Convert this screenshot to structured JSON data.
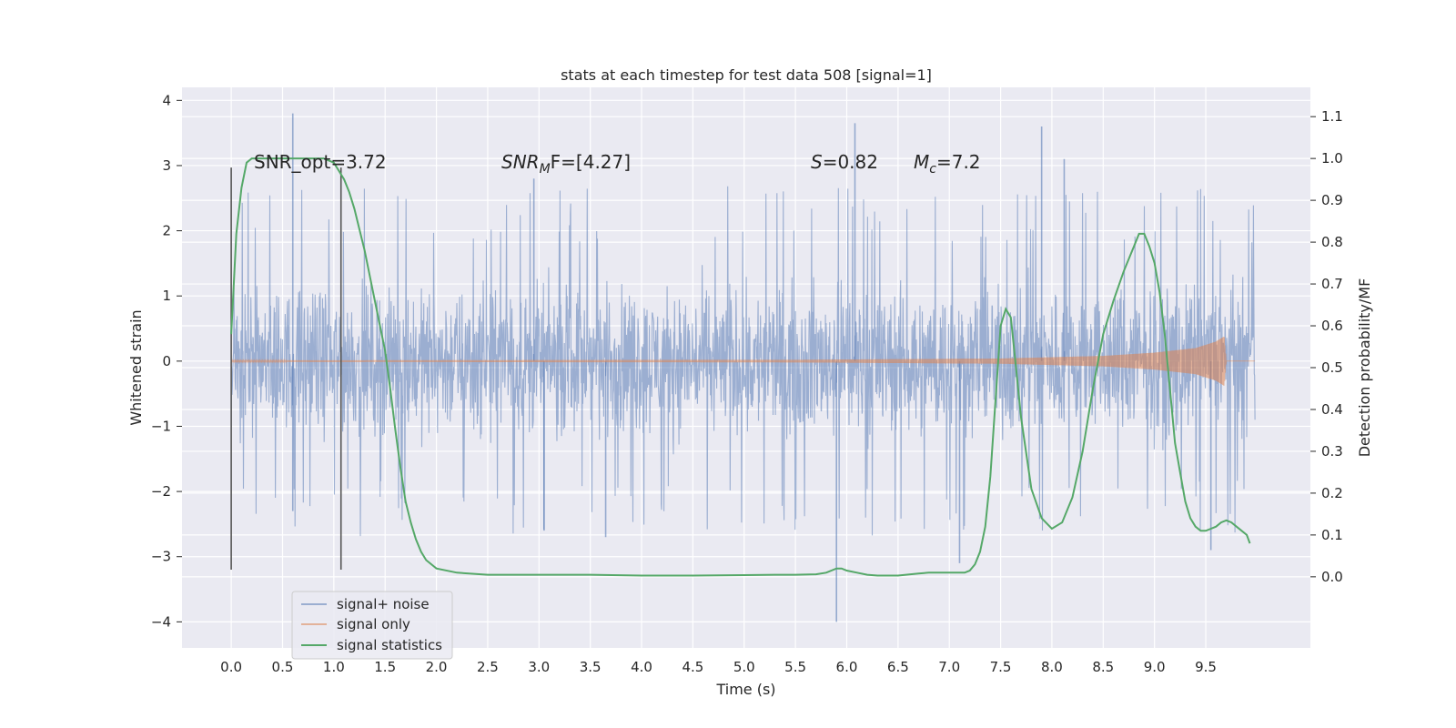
{
  "chart_data": {
    "type": "line",
    "title": "stats at each timestep for test data 508 [signal=1]",
    "xlabel": "Time (s)",
    "ylabel": "Whitened strain",
    "y2label": "Detection probability/MF",
    "xlim": [
      -0.48,
      10.52
    ],
    "ylim": [
      -4.4,
      4.2
    ],
    "y2lim": [
      -0.17,
      1.17
    ],
    "xticks": [
      "0.0",
      "0.5",
      "1.0",
      "1.5",
      "2.0",
      "2.5",
      "3.0",
      "3.5",
      "4.0",
      "4.5",
      "5.0",
      "5.5",
      "6.0",
      "6.5",
      "7.0",
      "7.5",
      "8.0",
      "8.5",
      "9.0",
      "9.5"
    ],
    "yticks": [
      "−4",
      "−3",
      "−2",
      "−1",
      "0",
      "1",
      "2",
      "3",
      "4"
    ],
    "y2ticks": [
      "0.0",
      "0.1",
      "0.2",
      "0.3",
      "0.4",
      "0.5",
      "0.6",
      "0.7",
      "0.8",
      "0.9",
      "1.0",
      "1.1"
    ],
    "grid": true,
    "legend_position": "lower-left",
    "annotations": [
      {
        "text": "SNR_opt=3.72"
      },
      {
        "main": "SNR",
        "sub": "M",
        "rest": "F=[4.27]"
      },
      {
        "main": "S",
        "rest": "=0.82"
      },
      {
        "main": "M",
        "sub": "c",
        "rest": "=7.2"
      }
    ],
    "vlines_x": [
      0.0,
      1.07
    ],
    "series": [
      {
        "name": "signal+ noise",
        "color": "#4c72b0",
        "axis": "left",
        "x_range": [
          0.0,
          9.98
        ],
        "typical_amplitude": 1.25,
        "spikes": [
          {
            "x": 0.6,
            "y": 3.8
          },
          {
            "x": 0.6,
            "y": -2.3
          },
          {
            "x": 2.95,
            "y": 2.8
          },
          {
            "x": 3.05,
            "y": -2.6
          },
          {
            "x": 3.65,
            "y": -2.7
          },
          {
            "x": 5.9,
            "y": -4.0
          },
          {
            "x": 6.08,
            "y": 3.65
          },
          {
            "x": 7.1,
            "y": -3.1
          },
          {
            "x": 7.9,
            "y": 3.6
          },
          {
            "x": 8.12,
            "y": 3.1
          },
          {
            "x": 9.55,
            "y": -2.9
          }
        ]
      },
      {
        "name": "signal only",
        "color": "#dd8452",
        "axis": "left",
        "envelope_x": [
          0.0,
          5.5,
          7.5,
          8.5,
          9.0,
          9.4,
          9.6,
          9.68,
          9.7,
          9.98
        ],
        "envelope_y": [
          0.01,
          0.02,
          0.04,
          0.08,
          0.13,
          0.2,
          0.3,
          0.38,
          0.0,
          0.0
        ]
      },
      {
        "name": "signal statistics",
        "color": "#55a868",
        "axis": "right",
        "x": [
          0.0,
          0.05,
          0.1,
          0.15,
          0.2,
          0.3,
          0.4,
          0.5,
          0.6,
          0.7,
          0.8,
          0.9,
          1.0,
          1.05,
          1.1,
          1.15,
          1.2,
          1.3,
          1.4,
          1.5,
          1.55,
          1.6,
          1.65,
          1.7,
          1.75,
          1.8,
          1.85,
          1.9,
          2.0,
          2.2,
          2.5,
          3.0,
          3.5,
          4.0,
          4.5,
          5.0,
          5.3,
          5.5,
          5.7,
          5.8,
          5.9,
          5.95,
          6.0,
          6.1,
          6.2,
          6.3,
          6.5,
          6.7,
          6.8,
          7.0,
          7.1,
          7.15,
          7.2,
          7.25,
          7.3,
          7.35,
          7.4,
          7.45,
          7.5,
          7.55,
          7.6,
          7.65,
          7.7,
          7.8,
          7.9,
          8.0,
          8.1,
          8.2,
          8.3,
          8.4,
          8.5,
          8.6,
          8.7,
          8.8,
          8.85,
          8.9,
          8.95,
          9.0,
          9.05,
          9.1,
          9.15,
          9.2,
          9.25,
          9.3,
          9.35,
          9.4,
          9.45,
          9.5,
          9.55,
          9.6,
          9.65,
          9.7,
          9.75,
          9.8,
          9.9,
          9.93
        ],
        "y": [
          0.58,
          0.82,
          0.93,
          0.99,
          1.0,
          1.0,
          1.0,
          1.0,
          1.0,
          1.0,
          1.0,
          1.0,
          0.99,
          0.97,
          0.95,
          0.92,
          0.88,
          0.78,
          0.66,
          0.54,
          0.45,
          0.35,
          0.26,
          0.18,
          0.13,
          0.09,
          0.06,
          0.04,
          0.02,
          0.01,
          0.005,
          0.005,
          0.005,
          0.003,
          0.003,
          0.004,
          0.005,
          0.005,
          0.006,
          0.01,
          0.02,
          0.02,
          0.015,
          0.01,
          0.005,
          0.003,
          0.003,
          0.008,
          0.01,
          0.01,
          0.01,
          0.01,
          0.015,
          0.03,
          0.06,
          0.12,
          0.24,
          0.42,
          0.6,
          0.64,
          0.62,
          0.5,
          0.38,
          0.21,
          0.14,
          0.115,
          0.13,
          0.19,
          0.3,
          0.45,
          0.58,
          0.66,
          0.73,
          0.79,
          0.82,
          0.82,
          0.79,
          0.75,
          0.68,
          0.58,
          0.45,
          0.32,
          0.25,
          0.18,
          0.14,
          0.12,
          0.11,
          0.11,
          0.115,
          0.12,
          0.13,
          0.135,
          0.13,
          0.12,
          0.1,
          0.08
        ]
      }
    ]
  }
}
